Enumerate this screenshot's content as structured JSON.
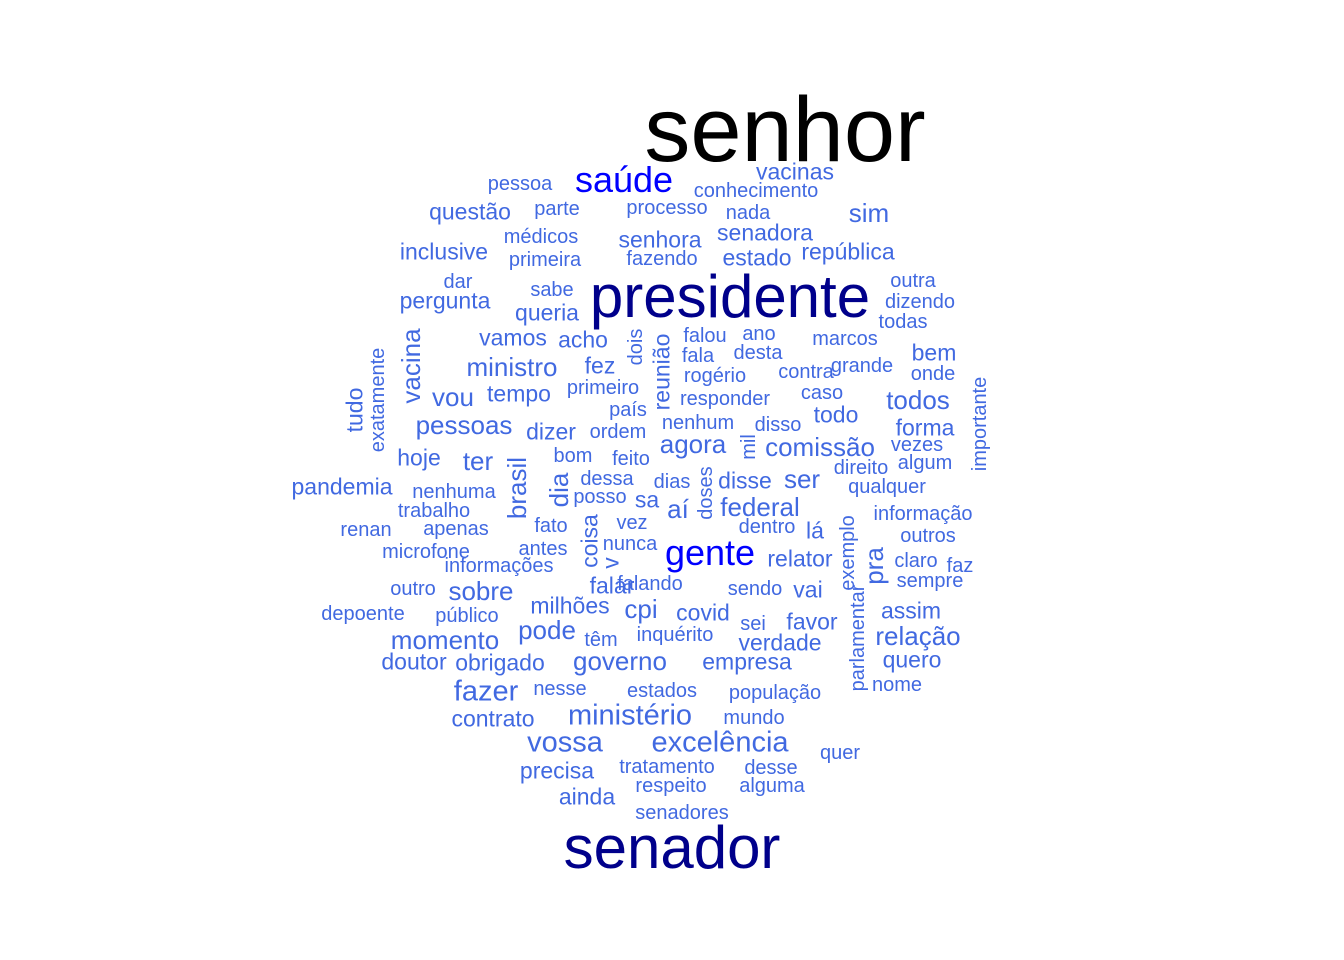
{
  "colors": {
    "black": "#000000",
    "navy": "#00008b",
    "blue": "#0000ff",
    "royal": "#4169e1"
  },
  "words": [
    {
      "text": "senhor",
      "color": "black",
      "tier": "t0"
    },
    {
      "text": "presidente",
      "color": "navy",
      "tier": "t1"
    },
    {
      "text": "senador",
      "color": "navy",
      "tier": "t1"
    },
    {
      "text": "saúde",
      "color": "blue",
      "tier": "t2"
    },
    {
      "text": "gente",
      "color": "blue",
      "tier": "t2"
    },
    {
      "text": "vossa",
      "color": "royal",
      "tier": "t3"
    },
    {
      "text": "excelência",
      "color": "royal",
      "tier": "t3"
    },
    {
      "text": "ministério",
      "color": "royal",
      "tier": "t3"
    },
    {
      "text": "fazer",
      "color": "royal",
      "tier": "t3"
    },
    {
      "text": "governo",
      "color": "royal",
      "tier": "t4"
    },
    {
      "text": "cpi",
      "color": "royal",
      "tier": "t4"
    },
    {
      "text": "pode",
      "color": "royal",
      "tier": "t4"
    },
    {
      "text": "sobre",
      "color": "royal",
      "tier": "t4"
    },
    {
      "text": "ministro",
      "color": "royal",
      "tier": "t4"
    },
    {
      "text": "pessoas",
      "color": "royal",
      "tier": "t4"
    },
    {
      "text": "federal",
      "color": "royal",
      "tier": "t4"
    },
    {
      "text": "ser",
      "color": "royal",
      "tier": "t4"
    },
    {
      "text": "todos",
      "color": "royal",
      "tier": "t4"
    },
    {
      "text": "agora",
      "color": "royal",
      "tier": "t4"
    },
    {
      "text": "comissão",
      "color": "royal",
      "tier": "t4"
    },
    {
      "text": "relação",
      "color": "royal",
      "tier": "t4"
    },
    {
      "text": "momento",
      "color": "royal",
      "tier": "t4"
    },
    {
      "text": "brasil",
      "color": "royal",
      "tier": "t4",
      "vertical": true
    },
    {
      "text": "dia",
      "color": "royal",
      "tier": "t4",
      "vertical": true
    },
    {
      "text": "vacina",
      "color": "royal",
      "tier": "t4",
      "vertical": true
    },
    {
      "text": "vou",
      "color": "royal",
      "tier": "t4"
    },
    {
      "text": "ter",
      "color": "royal",
      "tier": "t4"
    },
    {
      "text": "aí",
      "color": "royal",
      "tier": "t4"
    },
    {
      "text": "sim",
      "color": "royal",
      "tier": "t4"
    },
    {
      "text": "pra",
      "color": "royal",
      "tier": "t4",
      "vertical": true
    },
    {
      "text": "empresa",
      "color": "royal",
      "tier": "t5"
    },
    {
      "text": "dizer",
      "color": "royal",
      "tier": "t5"
    },
    {
      "text": "questão",
      "color": "royal",
      "tier": "t5"
    },
    {
      "text": "inclusive",
      "color": "royal",
      "tier": "t5"
    },
    {
      "text": "pergunta",
      "color": "royal",
      "tier": "t5"
    },
    {
      "text": "vamos",
      "color": "royal",
      "tier": "t5"
    },
    {
      "text": "senhora",
      "color": "royal",
      "tier": "t5"
    },
    {
      "text": "pandemia",
      "color": "royal",
      "tier": "t5"
    },
    {
      "text": "hoje",
      "color": "royal",
      "tier": "t5"
    },
    {
      "text": "doutor",
      "color": "royal",
      "tier": "t5"
    },
    {
      "text": "verdade",
      "color": "royal",
      "tier": "t5"
    },
    {
      "text": "favor",
      "color": "royal",
      "tier": "t5"
    },
    {
      "text": "covid",
      "color": "royal",
      "tier": "t5"
    },
    {
      "text": "vai",
      "color": "royal",
      "tier": "t5"
    },
    {
      "text": "queria",
      "color": "royal",
      "tier": "t5"
    },
    {
      "text": "acho",
      "color": "royal",
      "tier": "t5"
    },
    {
      "text": "tempo",
      "color": "royal",
      "tier": "t5"
    },
    {
      "text": "vacinas",
      "color": "royal",
      "tier": "t5"
    },
    {
      "text": "bem",
      "color": "royal",
      "tier": "t5"
    },
    {
      "text": "forma",
      "color": "royal",
      "tier": "t5"
    },
    {
      "text": "quero",
      "color": "royal",
      "tier": "t5"
    },
    {
      "text": "senadora",
      "color": "royal",
      "tier": "t5"
    },
    {
      "text": "lá",
      "color": "royal",
      "tier": "t5"
    },
    {
      "text": "sa",
      "color": "royal",
      "tier": "t5"
    },
    {
      "text": "disse",
      "color": "royal",
      "tier": "t5"
    },
    {
      "text": "república",
      "color": "royal",
      "tier": "t5"
    },
    {
      "text": "estado",
      "color": "royal",
      "tier": "t5"
    },
    {
      "text": "assim",
      "color": "royal",
      "tier": "t5"
    },
    {
      "text": "relator",
      "color": "royal",
      "tier": "t5"
    },
    {
      "text": "precisa",
      "color": "royal",
      "tier": "t5"
    },
    {
      "text": "ainda",
      "color": "royal",
      "tier": "t5"
    },
    {
      "text": "falar",
      "color": "royal",
      "tier": "t5"
    },
    {
      "text": "milhões",
      "color": "royal",
      "tier": "t5"
    },
    {
      "text": "obrigado",
      "color": "royal",
      "tier": "t5"
    },
    {
      "text": "fez",
      "color": "royal",
      "tier": "t5"
    },
    {
      "text": "todo",
      "color": "royal",
      "tier": "t5"
    },
    {
      "text": "contrato",
      "color": "royal",
      "tier": "t5"
    },
    {
      "text": "reunião",
      "color": "royal",
      "tier": "t5",
      "vertical": true
    },
    {
      "text": "coisa",
      "color": "royal",
      "tier": "t5",
      "vertical": true
    },
    {
      "text": "v",
      "color": "royal",
      "tier": "t5",
      "vertical": true
    },
    {
      "text": "tudo",
      "color": "royal",
      "tier": "t5",
      "vertical": true
    },
    {
      "text": "parte",
      "color": "royal",
      "tier": "t6"
    },
    {
      "text": "processo",
      "color": "royal",
      "tier": "t6"
    },
    {
      "text": "nada",
      "color": "royal",
      "tier": "t6"
    },
    {
      "text": "conhecimento",
      "color": "royal",
      "tier": "t6"
    },
    {
      "text": "pessoa",
      "color": "royal",
      "tier": "t6"
    },
    {
      "text": "médicos",
      "color": "royal",
      "tier": "t6"
    },
    {
      "text": "primeira",
      "color": "royal",
      "tier": "t6"
    },
    {
      "text": "fazendo",
      "color": "royal",
      "tier": "t6"
    },
    {
      "text": "dar",
      "color": "royal",
      "tier": "t6"
    },
    {
      "text": "sabe",
      "color": "royal",
      "tier": "t6"
    },
    {
      "text": "outra",
      "color": "royal",
      "tier": "t6"
    },
    {
      "text": "dizendo",
      "color": "royal",
      "tier": "t6"
    },
    {
      "text": "todas",
      "color": "royal",
      "tier": "t6"
    },
    {
      "text": "falou",
      "color": "royal",
      "tier": "t6"
    },
    {
      "text": "ano",
      "color": "royal",
      "tier": "t6"
    },
    {
      "text": "marcos",
      "color": "royal",
      "tier": "t6"
    },
    {
      "text": "fala",
      "color": "royal",
      "tier": "t6"
    },
    {
      "text": "desta",
      "color": "royal",
      "tier": "t6"
    },
    {
      "text": "grande",
      "color": "royal",
      "tier": "t6"
    },
    {
      "text": "rogério",
      "color": "royal",
      "tier": "t6"
    },
    {
      "text": "contra",
      "color": "royal",
      "tier": "t6"
    },
    {
      "text": "onde",
      "color": "royal",
      "tier": "t6"
    },
    {
      "text": "primeiro",
      "color": "royal",
      "tier": "t6"
    },
    {
      "text": "caso",
      "color": "royal",
      "tier": "t6"
    },
    {
      "text": "responder",
      "color": "royal",
      "tier": "t6"
    },
    {
      "text": "país",
      "color": "royal",
      "tier": "t6"
    },
    {
      "text": "nenhum",
      "color": "royal",
      "tier": "t6"
    },
    {
      "text": "disso",
      "color": "royal",
      "tier": "t6"
    },
    {
      "text": "ordem",
      "color": "royal",
      "tier": "t6"
    },
    {
      "text": "vezes",
      "color": "royal",
      "tier": "t6"
    },
    {
      "text": "bom",
      "color": "royal",
      "tier": "t6"
    },
    {
      "text": "feito",
      "color": "royal",
      "tier": "t6"
    },
    {
      "text": "dias",
      "color": "royal",
      "tier": "t6"
    },
    {
      "text": "direito",
      "color": "royal",
      "tier": "t6"
    },
    {
      "text": "algum",
      "color": "royal",
      "tier": "t6"
    },
    {
      "text": "dessa",
      "color": "royal",
      "tier": "t6"
    },
    {
      "text": "nenhuma",
      "color": "royal",
      "tier": "t6"
    },
    {
      "text": "posso",
      "color": "royal",
      "tier": "t6"
    },
    {
      "text": "qualquer",
      "color": "royal",
      "tier": "t6"
    },
    {
      "text": "trabalho",
      "color": "royal",
      "tier": "t6"
    },
    {
      "text": "informação",
      "color": "royal",
      "tier": "t6"
    },
    {
      "text": "renan",
      "color": "royal",
      "tier": "t6"
    },
    {
      "text": "apenas",
      "color": "royal",
      "tier": "t6"
    },
    {
      "text": "fato",
      "color": "royal",
      "tier": "t6"
    },
    {
      "text": "vez",
      "color": "royal",
      "tier": "t6"
    },
    {
      "text": "dentro",
      "color": "royal",
      "tier": "t6"
    },
    {
      "text": "outros",
      "color": "royal",
      "tier": "t6"
    },
    {
      "text": "microfone",
      "color": "royal",
      "tier": "t6"
    },
    {
      "text": "antes",
      "color": "royal",
      "tier": "t6"
    },
    {
      "text": "nunca",
      "color": "royal",
      "tier": "t6"
    },
    {
      "text": "claro",
      "color": "royal",
      "tier": "t6"
    },
    {
      "text": "faz",
      "color": "royal",
      "tier": "t6"
    },
    {
      "text": "informações",
      "color": "royal",
      "tier": "t6"
    },
    {
      "text": "sempre",
      "color": "royal",
      "tier": "t6"
    },
    {
      "text": "outro",
      "color": "royal",
      "tier": "t6"
    },
    {
      "text": "falando",
      "color": "royal",
      "tier": "t6"
    },
    {
      "text": "sendo",
      "color": "royal",
      "tier": "t6"
    },
    {
      "text": "depoente",
      "color": "royal",
      "tier": "t6"
    },
    {
      "text": "público",
      "color": "royal",
      "tier": "t6"
    },
    {
      "text": "sei",
      "color": "royal",
      "tier": "t6"
    },
    {
      "text": "têm",
      "color": "royal",
      "tier": "t6"
    },
    {
      "text": "inquérito",
      "color": "royal",
      "tier": "t6"
    },
    {
      "text": "nome",
      "color": "royal",
      "tier": "t6"
    },
    {
      "text": "nesse",
      "color": "royal",
      "tier": "t6"
    },
    {
      "text": "estados",
      "color": "royal",
      "tier": "t6"
    },
    {
      "text": "população",
      "color": "royal",
      "tier": "t6"
    },
    {
      "text": "mundo",
      "color": "royal",
      "tier": "t6"
    },
    {
      "text": "quer",
      "color": "royal",
      "tier": "t6"
    },
    {
      "text": "tratamento",
      "color": "royal",
      "tier": "t6"
    },
    {
      "text": "desse",
      "color": "royal",
      "tier": "t6"
    },
    {
      "text": "respeito",
      "color": "royal",
      "tier": "t6"
    },
    {
      "text": "alguma",
      "color": "royal",
      "tier": "t6"
    },
    {
      "text": "senadores",
      "color": "royal",
      "tier": "t6"
    },
    {
      "text": "dois",
      "color": "royal",
      "tier": "t6",
      "vertical": true
    },
    {
      "text": "mil",
      "color": "royal",
      "tier": "t6",
      "vertical": true
    },
    {
      "text": "doses",
      "color": "royal",
      "tier": "t6",
      "vertical": true
    },
    {
      "text": "exemplo",
      "color": "royal",
      "tier": "t6",
      "vertical": true
    },
    {
      "text": "parlamentar",
      "color": "royal",
      "tier": "t6",
      "vertical": true
    },
    {
      "text": "exatamente",
      "color": "royal",
      "tier": "t6",
      "vertical": true
    },
    {
      "text": "importante",
      "color": "royal",
      "tier": "t6",
      "vertical": true
    }
  ]
}
